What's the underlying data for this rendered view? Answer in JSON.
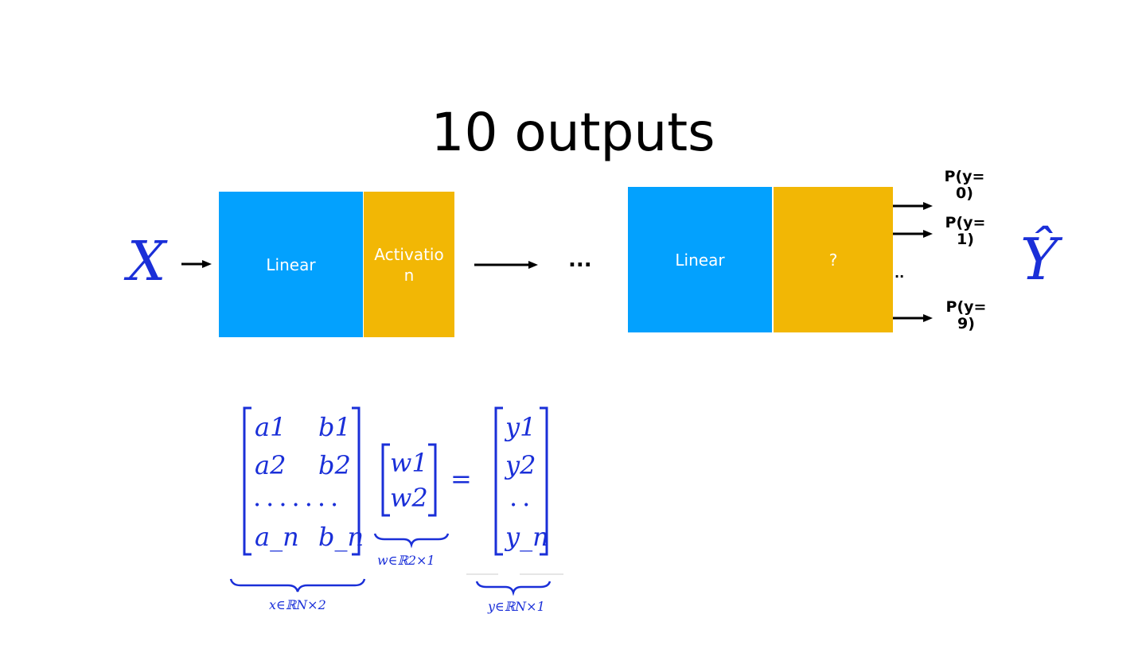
{
  "title": "10 outputs",
  "input_symbol": "X",
  "output_symbol": "Ŷ",
  "layer1": {
    "linear": "Linear",
    "activation": "Activation"
  },
  "ellipsis": "...",
  "layer2": {
    "linear": "Linear",
    "activation": "?"
  },
  "outputs": [
    "P(y=0)",
    "P(y=1)",
    "P(y=9)"
  ],
  "outputs_ellipsis": "..",
  "equation": {
    "x_matrix": [
      [
        "a1",
        "b1"
      ],
      [
        "a2",
        "b2"
      ],
      [
        "a_n",
        "b_n"
      ]
    ],
    "x_dots": ".......",
    "w_vector": [
      "w1",
      "w2"
    ],
    "equals": "=",
    "y_vector": [
      "y1",
      "y2",
      "..",
      "y_n"
    ],
    "x_label": "x∈ℝN×2",
    "w_label": "w∈ℝ2×1",
    "y_label": "y∈ℝN×1"
  },
  "colors": {
    "linear": "#03a1fe",
    "activation": "#f2b705",
    "math": "#1a2fd8"
  }
}
